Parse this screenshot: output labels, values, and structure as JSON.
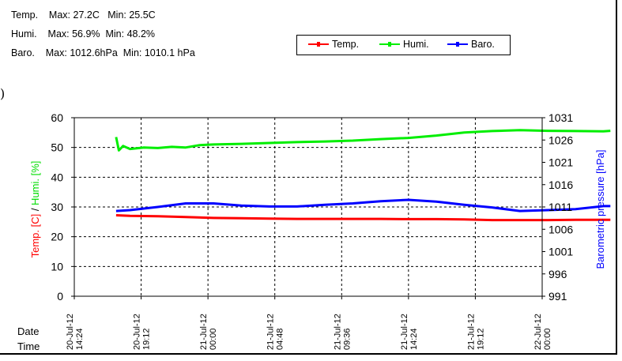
{
  "stats": {
    "temp_line": "Temp.    Max: 27.2C   Min: 25.5C",
    "humi_line": "Humi.    Max: 56.9%  Min: 48.2%",
    "baro_line": "Baro.    Max: 1012.6hPa  Min: 1010.1 hPa"
  },
  "stray_mark": ")",
  "footer": {
    "date_label": "Date",
    "time_label": "Time"
  },
  "colors": {
    "temp": "#ff0000",
    "humi": "#00ee00",
    "baro": "#0000ff"
  },
  "chart_data": {
    "type": "line",
    "title": "",
    "xlabel": "",
    "ylabel_left_parts": [
      "Temp. [C]",
      " / ",
      "Humi. [%]"
    ],
    "ylabel_right": "Barometric pressure [hPa]",
    "ylim_left": [
      0,
      60
    ],
    "yticks_left": [
      0,
      10,
      20,
      30,
      40,
      50,
      60
    ],
    "ylim_right": [
      991,
      1031
    ],
    "yticks_right": [
      991,
      996,
      1001,
      1006,
      1011,
      1016,
      1021,
      1026,
      1031
    ],
    "x_ticks": [
      {
        "date": "20-Jul-12",
        "time": "14:24"
      },
      {
        "date": "20-Jul-12",
        "time": "19:12"
      },
      {
        "date": "21-Jul-12",
        "time": "00:00"
      },
      {
        "date": "21-Jul-12",
        "time": "04:48"
      },
      {
        "date": "21-Jul-12",
        "time": "09:36"
      },
      {
        "date": "21-Jul-12",
        "time": "14:24"
      },
      {
        "date": "21-Jul-12",
        "time": "19:12"
      },
      {
        "date": "22-Jul-12",
        "time": "00:00"
      }
    ],
    "grid": true,
    "legend": {
      "position": "top-right",
      "entries": [
        "Temp.",
        "Humi.",
        "Baro."
      ]
    },
    "x_hours_since_first_tick_note": "x values below are hours after 20-Jul-12 14:24",
    "series": [
      {
        "name": "Temp.",
        "axis": "left",
        "x": [
          3.0,
          4.0,
          6.0,
          8.0,
          10.0,
          12.0,
          14.0,
          16.0,
          18.0,
          20.0,
          22.0,
          24.0,
          26.0,
          28.0,
          30.0,
          32.0,
          34.0,
          36.0,
          38.0,
          38.5
        ],
        "values": [
          27.2,
          27.0,
          26.9,
          26.6,
          26.3,
          26.2,
          26.1,
          26.0,
          26.0,
          26.0,
          26.0,
          25.9,
          25.9,
          25.8,
          25.6,
          25.6,
          25.6,
          25.7,
          25.7,
          25.7
        ]
      },
      {
        "name": "Humi.",
        "axis": "left",
        "x": [
          3.0,
          3.2,
          3.5,
          4.0,
          5.0,
          6.0,
          7.0,
          8.0,
          9.0,
          10.0,
          12.0,
          14.0,
          16.0,
          18.0,
          20.0,
          22.0,
          24.0,
          26.0,
          28.0,
          30.0,
          32.0,
          34.0,
          36.0,
          38.0,
          38.5
        ],
        "values": [
          53.5,
          49.0,
          50.5,
          49.5,
          50.0,
          49.8,
          50.2,
          50.0,
          50.8,
          51.0,
          51.2,
          51.5,
          51.8,
          52.0,
          52.3,
          52.8,
          53.2,
          54.0,
          55.0,
          55.5,
          55.8,
          55.6,
          55.5,
          55.4,
          55.6
        ]
      },
      {
        "name": "Baro.",
        "axis": "right",
        "x": [
          3.0,
          4.0,
          6.0,
          8.0,
          10.0,
          12.0,
          14.0,
          16.0,
          18.0,
          20.0,
          22.0,
          24.0,
          26.0,
          28.0,
          30.0,
          32.0,
          34.0,
          36.0,
          38.0,
          38.5
        ],
        "values": [
          1010.1,
          1010.3,
          1011.0,
          1011.8,
          1011.8,
          1011.3,
          1011.1,
          1011.1,
          1011.5,
          1011.8,
          1012.3,
          1012.6,
          1012.2,
          1011.5,
          1010.9,
          1010.1,
          1010.3,
          1010.5,
          1011.2,
          1011.2
        ]
      }
    ]
  }
}
